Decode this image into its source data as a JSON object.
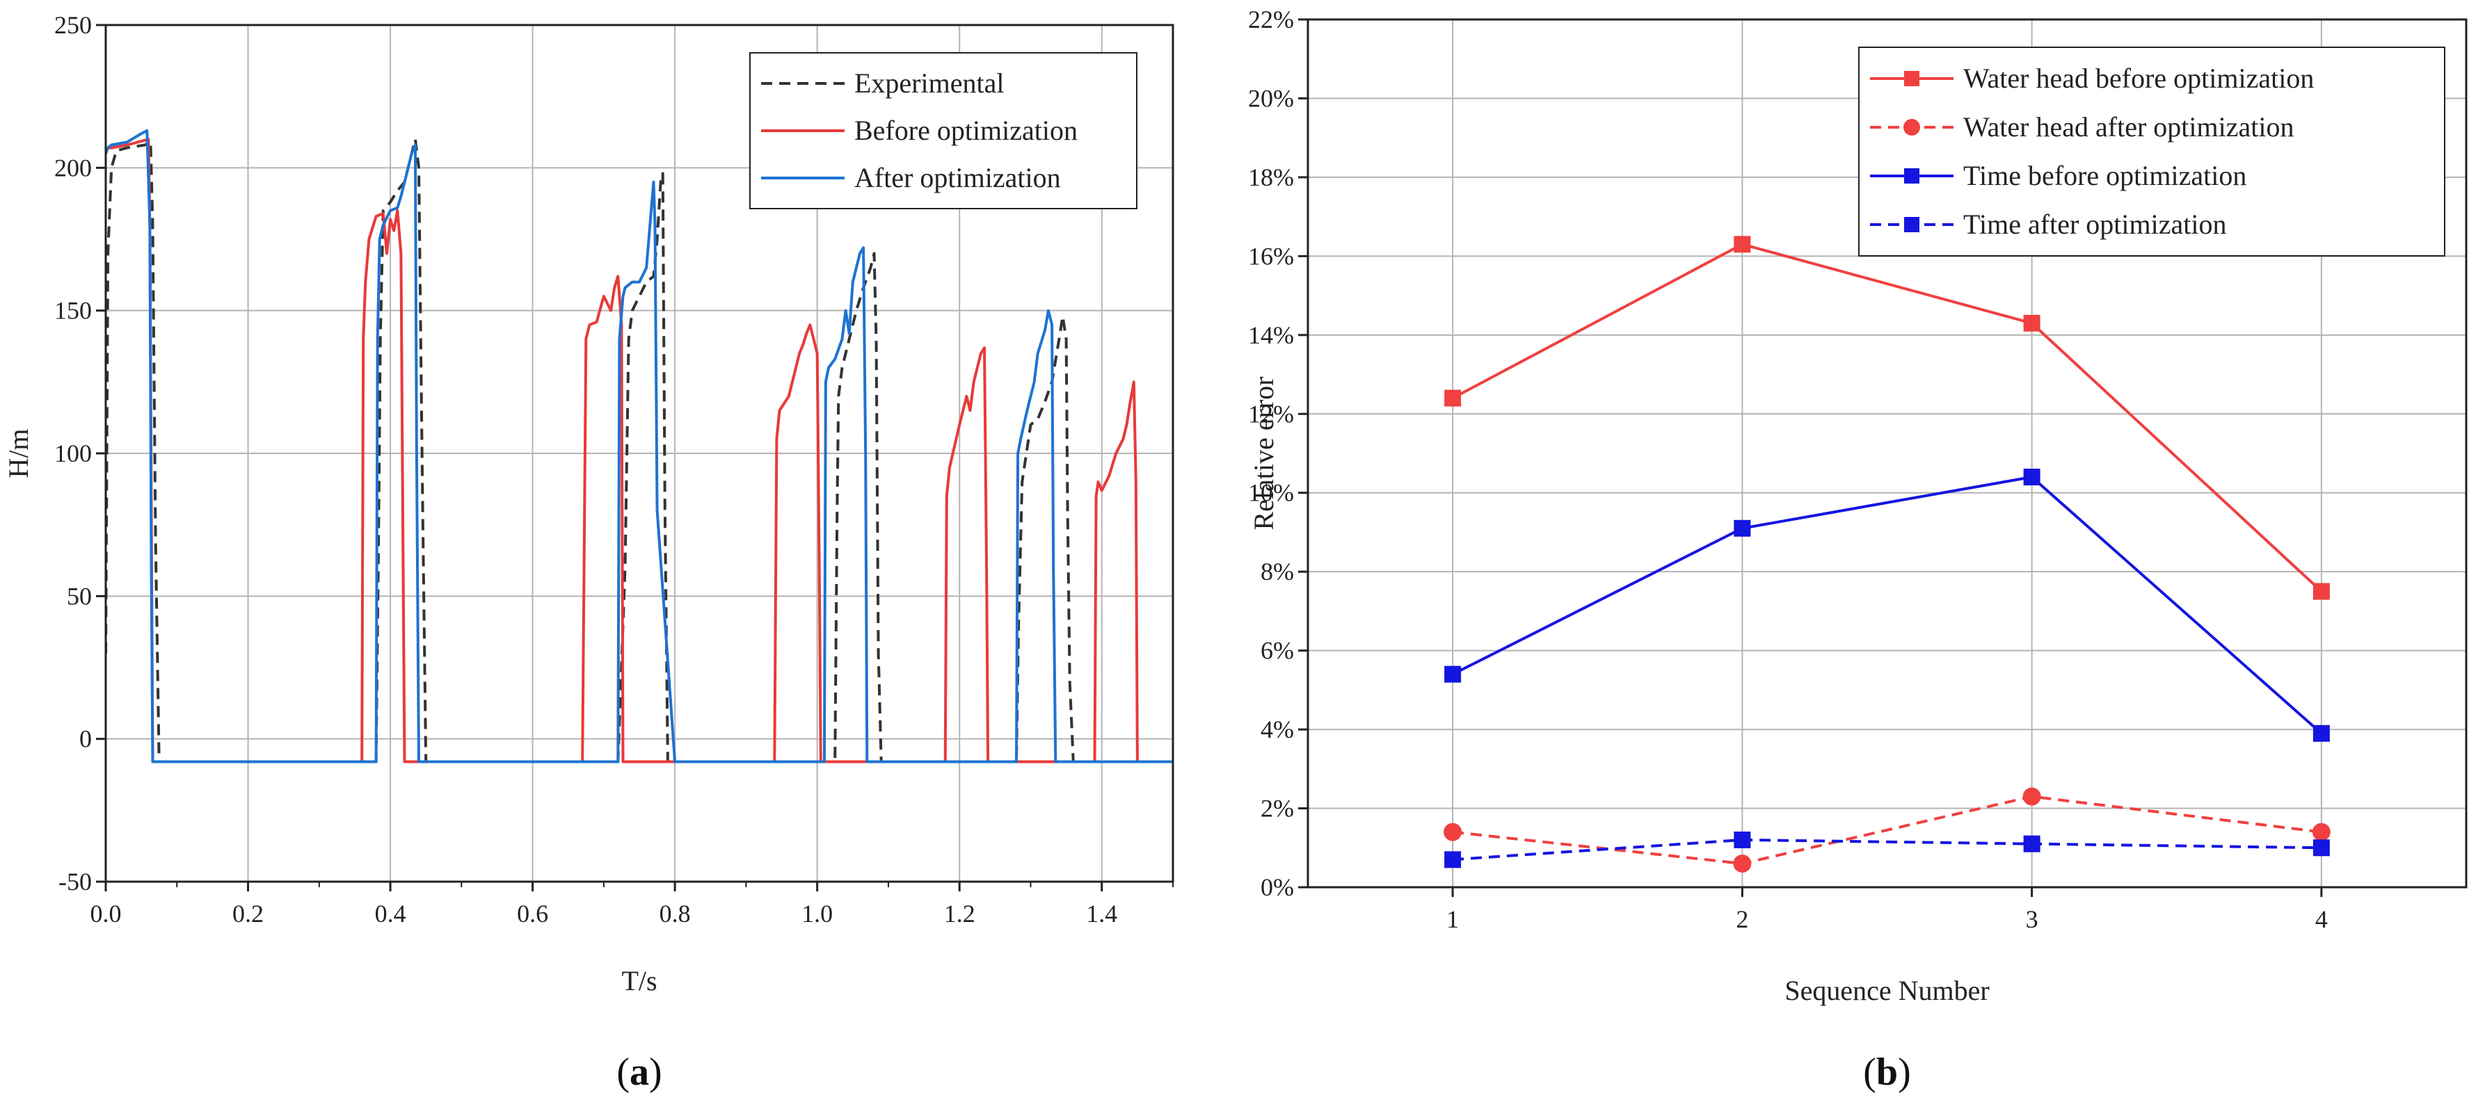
{
  "chart_data": [
    {
      "type": "line",
      "panel_label": "a",
      "xlabel": "T/s",
      "ylabel": "H/m",
      "xlim": [
        0,
        1.5
      ],
      "ylim": [
        -50,
        250
      ],
      "xticks": [
        "0.0",
        "0.2",
        "0.4",
        "0.6",
        "0.8",
        "1.0",
        "1.2",
        "1.4"
      ],
      "yticks": [
        "-50",
        "0",
        "50",
        "100",
        "150",
        "200",
        "250"
      ],
      "grid": true,
      "legend_position": "top-right",
      "series": [
        {
          "name": "Experimental",
          "color": "#333333",
          "dash": true,
          "x": [
            0,
            0.003,
            0.008,
            0.015,
            0.03,
            0.055,
            0.063,
            0.066,
            0.07,
            0.075,
            0.1,
            0.3,
            0.38,
            0.383,
            0.386,
            0.39,
            0.4,
            0.41,
            0.42,
            0.43,
            0.435,
            0.44,
            0.445,
            0.45,
            0.5,
            0.7,
            0.72,
            0.73,
            0.735,
            0.74,
            0.75,
            0.76,
            0.77,
            0.775,
            0.78,
            0.783,
            0.786,
            0.79,
            0.8,
            1.0,
            1.025,
            1.028,
            1.03,
            1.035,
            1.045,
            1.055,
            1.065,
            1.075,
            1.08,
            1.083,
            1.086,
            1.09,
            1.1,
            1.27,
            1.28,
            1.283,
            1.288,
            1.3,
            1.31,
            1.32,
            1.33,
            1.34,
            1.345,
            1.35,
            1.352,
            1.355,
            1.36,
            1.38,
            1.5
          ],
          "y": [
            30,
            170,
            200,
            206,
            207,
            208,
            209,
            180,
            70,
            -8,
            -8,
            -8,
            -8,
            60,
            140,
            185,
            188,
            192,
            195,
            205,
            210,
            200,
            90,
            -8,
            -8,
            -8,
            -8,
            60,
            140,
            150,
            155,
            160,
            162,
            175,
            195,
            198,
            80,
            -8,
            -8,
            -8,
            -8,
            80,
            120,
            130,
            140,
            150,
            158,
            165,
            170,
            140,
            30,
            -8,
            -8,
            -8,
            -8,
            40,
            90,
            110,
            112,
            118,
            125,
            140,
            148,
            140,
            80,
            20,
            -8,
            -8,
            -8
          ]
        },
        {
          "name": "Before optimization",
          "color": "#E83A3A",
          "dash": false,
          "x": [
            0,
            0.003,
            0.008,
            0.03,
            0.06,
            0.062,
            0.064,
            0.066,
            0.1,
            0.36,
            0.362,
            0.365,
            0.37,
            0.38,
            0.39,
            0.395,
            0.4,
            0.405,
            0.41,
            0.415,
            0.418,
            0.42,
            0.5,
            0.67,
            0.675,
            0.68,
            0.69,
            0.7,
            0.71,
            0.715,
            0.72,
            0.725,
            0.727,
            0.73,
            0.8,
            0.94,
            0.943,
            0.947,
            0.96,
            0.975,
            0.98,
            0.985,
            0.99,
            1.0,
            1.003,
            1.005,
            1.1,
            1.18,
            1.182,
            1.186,
            1.2,
            1.21,
            1.215,
            1.22,
            1.23,
            1.235,
            1.238,
            1.24,
            1.3,
            1.39,
            1.392,
            1.395,
            1.4,
            1.41,
            1.42,
            1.43,
            1.435,
            1.44,
            1.445,
            1.448,
            1.45,
            1.5
          ],
          "y": [
            205,
            207,
            207,
            208,
            210,
            180,
            80,
            -8,
            -8,
            -8,
            140,
            160,
            175,
            183,
            184,
            170,
            182,
            178,
            185,
            170,
            60,
            -8,
            -8,
            -8,
            140,
            145,
            146,
            155,
            150,
            158,
            162,
            145,
            -8,
            -8,
            -8,
            -8,
            105,
            115,
            120,
            135,
            138,
            142,
            145,
            135,
            60,
            -8,
            -8,
            -8,
            85,
            95,
            110,
            120,
            115,
            125,
            135,
            137,
            60,
            -8,
            -8,
            -8,
            85,
            90,
            87,
            92,
            100,
            105,
            110,
            118,
            125,
            90,
            -8,
            -8
          ]
        },
        {
          "name": "After optimization",
          "color": "#1E73D2",
          "dash": false,
          "x": [
            0,
            0.003,
            0.008,
            0.03,
            0.05,
            0.058,
            0.062,
            0.064,
            0.066,
            0.1,
            0.38,
            0.382,
            0.385,
            0.39,
            0.4,
            0.41,
            0.415,
            0.42,
            0.43,
            0.435,
            0.437,
            0.44,
            0.5,
            0.72,
            0.722,
            0.727,
            0.73,
            0.74,
            0.75,
            0.76,
            0.765,
            0.77,
            0.772,
            0.775,
            0.8,
            1.01,
            1.012,
            1.016,
            1.025,
            1.035,
            1.04,
            1.045,
            1.05,
            1.06,
            1.065,
            1.068,
            1.07,
            1.1,
            1.28,
            1.282,
            1.286,
            1.295,
            1.305,
            1.31,
            1.32,
            1.325,
            1.33,
            1.332,
            1.335,
            1.5
          ],
          "y": [
            205,
            207,
            208,
            209,
            212,
            213,
            180,
            60,
            -8,
            -8,
            -8,
            140,
            175,
            180,
            185,
            186,
            190,
            195,
            205,
            208,
            100,
            -8,
            -8,
            -8,
            140,
            155,
            158,
            160,
            160,
            165,
            180,
            195,
            180,
            80,
            -8,
            -8,
            125,
            130,
            133,
            140,
            150,
            142,
            160,
            170,
            172,
            100,
            -8,
            -8,
            -8,
            100,
            105,
            115,
            125,
            135,
            143,
            150,
            145,
            60,
            -8,
            -8
          ]
        }
      ]
    },
    {
      "type": "line",
      "panel_label": "b",
      "xlabel": "Sequence Number",
      "ylabel": "Relative error",
      "x": [
        1,
        2,
        3,
        4
      ],
      "xlim": [
        0.5,
        4.5
      ],
      "ylim": [
        0,
        22
      ],
      "xticks": [
        "1",
        "2",
        "3",
        "4"
      ],
      "yticks": [
        "0%",
        "2%",
        "4%",
        "6%",
        "8%",
        "10%",
        "12%",
        "14%",
        "16%",
        "18%",
        "20%",
        "22%"
      ],
      "grid": true,
      "legend_position": "top-right",
      "series": [
        {
          "name": "Water head before optimization",
          "color": "#F04040",
          "dash": false,
          "marker": "square",
          "values": [
            12.4,
            16.3,
            14.3,
            7.5
          ]
        },
        {
          "name": "Water head after optimization",
          "color": "#F04040",
          "dash": true,
          "marker": "circle",
          "values": [
            1.4,
            0.6,
            2.3,
            1.4
          ]
        },
        {
          "name": "Time before optimization",
          "color": "#1515E0",
          "dash": false,
          "marker": "square",
          "values": [
            5.4,
            9.1,
            10.4,
            3.9
          ]
        },
        {
          "name": "Time after optimization",
          "color": "#1515E0",
          "dash": true,
          "marker": "square",
          "values": [
            0.7,
            1.2,
            1.1,
            1.0
          ]
        }
      ]
    }
  ]
}
